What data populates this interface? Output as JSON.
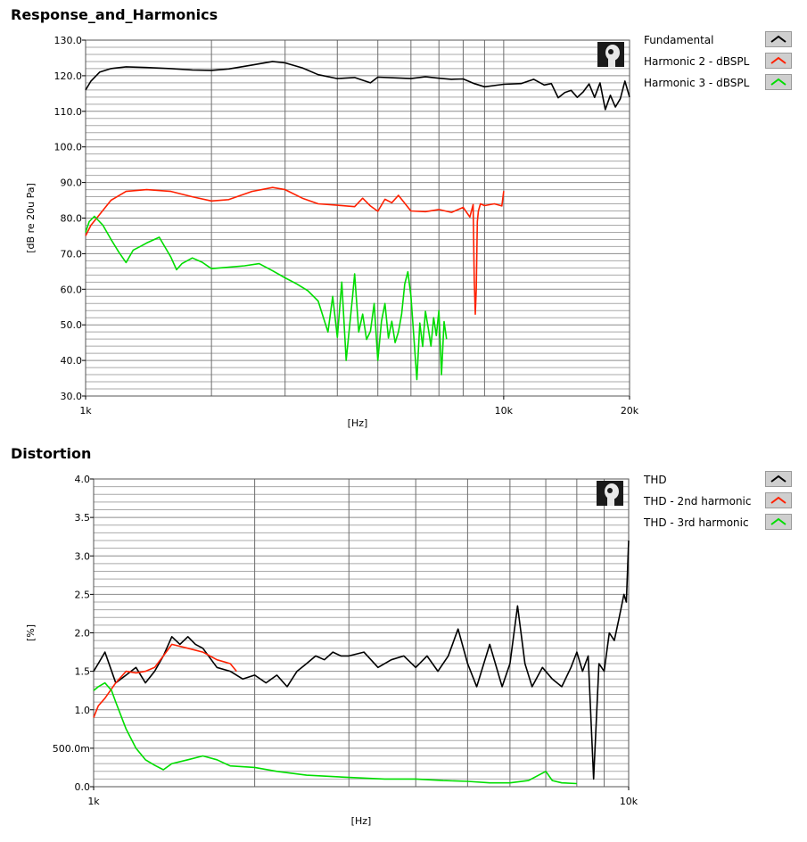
{
  "chart_data": [
    {
      "type": "line",
      "title": "Response_and_Harmonics",
      "xlabel": "[Hz]",
      "ylabel": "[dB re 20u Pa]",
      "xscale": "log",
      "xlim": [
        1000,
        20000
      ],
      "ylim": [
        30,
        130
      ],
      "x_tick_labels": [
        "1k",
        "10k",
        "20k"
      ],
      "y_tick_labels": [
        "30.0",
        "40.0",
        "50.0",
        "60.0",
        "70.0",
        "80.0",
        "90.0",
        "100.0",
        "110.0",
        "120.0",
        "130.0"
      ],
      "grid": true,
      "legend_position": "right",
      "series": [
        {
          "name": "Fundamental",
          "color": "#000000",
          "x": [
            1000,
            1030,
            1080,
            1150,
            1250,
            1400,
            1600,
            1800,
            2000,
            2200,
            2500,
            2800,
            3000,
            3300,
            3600,
            4000,
            4400,
            4800,
            5000,
            5500,
            6000,
            6500,
            7000,
            7500,
            8000,
            8500,
            9000,
            10000,
            11000,
            11800,
            12500,
            13000,
            13500,
            14000,
            14500,
            15000,
            15500,
            16000,
            16500,
            17000,
            17500,
            18000,
            18500,
            19000,
            19500,
            20000
          ],
          "y": [
            116,
            118.5,
            121,
            122,
            122.5,
            122.3,
            122,
            121.6,
            121.5,
            121.9,
            123,
            124,
            123.6,
            122.2,
            120.3,
            119.2,
            119.5,
            118,
            119.6,
            119.4,
            119.2,
            119.7,
            119.3,
            119,
            119.1,
            117.8,
            116.9,
            117.6,
            117.8,
            119,
            117.4,
            117.8,
            113.8,
            115.3,
            115.9,
            113.9,
            115.5,
            117.7,
            113.9,
            118,
            110.5,
            114.5,
            111.2,
            113.5,
            118.5,
            114
          ]
        },
        {
          "name": "Harmonic 2 - dBSPL",
          "color": "#ff2000",
          "x": [
            1000,
            1030,
            1080,
            1150,
            1250,
            1400,
            1600,
            1800,
            2000,
            2200,
            2500,
            2800,
            3000,
            3300,
            3600,
            4000,
            4400,
            4600,
            4800,
            5000,
            5200,
            5400,
            5600,
            6000,
            6500,
            7000,
            7500,
            8000,
            8300,
            8450,
            8500,
            8550,
            8600,
            8650,
            8700,
            8800,
            9000,
            9500,
            9900,
            10000
          ],
          "y": [
            75,
            78,
            81,
            85,
            87.5,
            88,
            87.5,
            86,
            84.8,
            85.2,
            87.5,
            88.6,
            88,
            85.6,
            84,
            83.6,
            83.2,
            85.6,
            83.4,
            81.9,
            85.3,
            84.3,
            86.4,
            82,
            81.8,
            82.4,
            81.6,
            83,
            80.3,
            83.8,
            63,
            53,
            60,
            79,
            82,
            84,
            83.5,
            84,
            83.4,
            87.6
          ]
        },
        {
          "name": "Harmonic 3 - dBSPL",
          "color": "#00dd00",
          "x": [
            1000,
            1020,
            1050,
            1100,
            1150,
            1200,
            1250,
            1300,
            1350,
            1400,
            1500,
            1600,
            1650,
            1700,
            1800,
            1900,
            2000,
            2200,
            2400,
            2600,
            2800,
            3000,
            3200,
            3400,
            3600,
            3800,
            3900,
            4000,
            4100,
            4200,
            4350,
            4400,
            4500,
            4600,
            4700,
            4800,
            4900,
            5000,
            5100,
            5200,
            5300,
            5400,
            5500,
            5600,
            5700,
            5800,
            5900,
            6000,
            6200,
            6300,
            6400,
            6500,
            6600,
            6700,
            6800,
            6900,
            7000,
            7100,
            7200,
            7300
          ],
          "y": [
            76,
            79,
            80.5,
            78,
            74,
            70.5,
            67.5,
            71,
            72,
            73,
            74.6,
            69,
            65.5,
            67.2,
            68.8,
            67.6,
            65.8,
            66.2,
            66.6,
            67.2,
            65.2,
            63.2,
            61.5,
            59.6,
            56.7,
            48,
            58,
            46.5,
            62,
            40,
            58,
            64.3,
            48,
            53,
            45.9,
            48.2,
            56,
            40,
            51,
            56,
            46.3,
            51,
            45,
            48,
            53,
            61.5,
            64.9,
            58.2,
            34.6,
            50.5,
            43.9,
            53.8,
            49,
            44,
            52,
            47,
            54,
            36,
            50.9,
            46
          ]
        }
      ]
    },
    {
      "type": "line",
      "title": "Distortion",
      "xlabel": "[Hz]",
      "ylabel": "[%]",
      "xscale": "log",
      "xlim": [
        1000,
        10000
      ],
      "ylim": [
        0,
        4
      ],
      "x_tick_labels": [
        "1k",
        "10k"
      ],
      "y_tick_labels": [
        "0.0",
        "500.0m",
        "1.0",
        "1.5",
        "2.0",
        "2.5",
        "3.0",
        "3.5",
        "4.0"
      ],
      "grid": true,
      "legend_position": "right",
      "series": [
        {
          "name": "THD",
          "color": "#000000",
          "x": [
            1000,
            1020,
            1050,
            1100,
            1150,
            1200,
            1250,
            1300,
            1350,
            1400,
            1450,
            1500,
            1550,
            1600,
            1700,
            1800,
            1900,
            2000,
            2100,
            2200,
            2300,
            2400,
            2500,
            2600,
            2700,
            2800,
            2900,
            3000,
            3200,
            3400,
            3600,
            3800,
            4000,
            4200,
            4400,
            4600,
            4800,
            5000,
            5200,
            5500,
            5800,
            6000,
            6200,
            6400,
            6600,
            6900,
            7200,
            7500,
            7800,
            8000,
            8200,
            8400,
            8600,
            8800,
            9000,
            9200,
            9400,
            9600,
            9800,
            9900,
            10000
          ],
          "y": [
            1.5,
            1.6,
            1.75,
            1.35,
            1.45,
            1.55,
            1.35,
            1.5,
            1.7,
            1.95,
            1.85,
            1.95,
            1.85,
            1.8,
            1.55,
            1.5,
            1.4,
            1.45,
            1.35,
            1.45,
            1.3,
            1.5,
            1.6,
            1.7,
            1.65,
            1.75,
            1.7,
            1.7,
            1.75,
            1.55,
            1.65,
            1.7,
            1.55,
            1.7,
            1.5,
            1.7,
            2.05,
            1.6,
            1.3,
            1.85,
            1.3,
            1.6,
            2.35,
            1.6,
            1.3,
            1.55,
            1.4,
            1.3,
            1.55,
            1.75,
            1.5,
            1.7,
            0.1,
            1.6,
            1.5,
            2.0,
            1.9,
            2.2,
            2.5,
            2.4,
            3.2
          ]
        },
        {
          "name": "THD - 2nd harmonic",
          "color": "#ff2000",
          "x": [
            1000,
            1020,
            1050,
            1100,
            1150,
            1200,
            1250,
            1300,
            1350,
            1400,
            1500,
            1600,
            1700,
            1800,
            1850
          ],
          "y": [
            0.9,
            1.05,
            1.15,
            1.35,
            1.5,
            1.48,
            1.5,
            1.55,
            1.7,
            1.85,
            1.8,
            1.75,
            1.65,
            1.6,
            1.5
          ]
        },
        {
          "name": "THD - 3rd harmonic",
          "color": "#00dd00",
          "x": [
            1000,
            1020,
            1050,
            1080,
            1100,
            1150,
            1200,
            1250,
            1300,
            1350,
            1400,
            1500,
            1600,
            1700,
            1800,
            2000,
            2200,
            2500,
            3000,
            3500,
            4000,
            4500,
            5000,
            5500,
            6000,
            6500,
            7000,
            7200,
            7500,
            8000
          ],
          "y": [
            1.25,
            1.3,
            1.35,
            1.25,
            1.1,
            0.75,
            0.5,
            0.35,
            0.28,
            0.22,
            0.3,
            0.35,
            0.4,
            0.35,
            0.27,
            0.25,
            0.2,
            0.15,
            0.12,
            0.1,
            0.1,
            0.08,
            0.07,
            0.05,
            0.05,
            0.08,
            0.2,
            0.08,
            0.05,
            0.04
          ]
        }
      ]
    }
  ]
}
